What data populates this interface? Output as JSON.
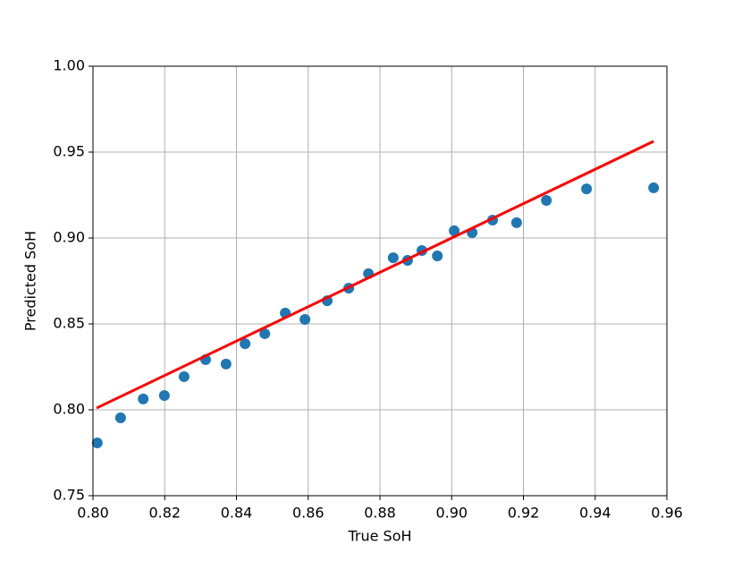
{
  "chart_data": {
    "type": "scatter",
    "xlabel": "True SoH",
    "ylabel": "Predicted SoH",
    "series": [
      {
        "type": "scatter",
        "color": "#1f77b4",
        "x": [
          0.8012,
          0.8077,
          0.814,
          0.8199,
          0.8254,
          0.8314,
          0.8371,
          0.8424,
          0.8479,
          0.8536,
          0.8591,
          0.8653,
          0.8713,
          0.8768,
          0.8837,
          0.8877,
          0.8917,
          0.896,
          0.9007,
          0.9057,
          0.9114,
          0.9181,
          0.9264,
          0.9376,
          0.9563
        ],
        "values": [
          0.7807,
          0.7953,
          0.8063,
          0.8083,
          0.8193,
          0.8292,
          0.8266,
          0.8385,
          0.8443,
          0.8563,
          0.8526,
          0.8635,
          0.8708,
          0.8792,
          0.8885,
          0.887,
          0.8927,
          0.8896,
          0.9042,
          0.9031,
          0.9104,
          0.9089,
          0.9219,
          0.9286,
          0.9292
        ]
      },
      {
        "type": "line",
        "color": "#ff0000",
        "x": [
          0.801,
          0.9563
        ],
        "values": [
          0.801,
          0.9563
        ]
      }
    ],
    "xlim": [
      0.8,
      0.96
    ],
    "ylim": [
      0.75,
      1.0
    ],
    "xticks": [
      {
        "value": 0.8,
        "label": "0.80"
      },
      {
        "value": 0.82,
        "label": "0.82"
      },
      {
        "value": 0.84,
        "label": "0.84"
      },
      {
        "value": 0.86,
        "label": "0.86"
      },
      {
        "value": 0.88,
        "label": "0.88"
      },
      {
        "value": 0.9,
        "label": "0.90"
      },
      {
        "value": 0.92,
        "label": "0.92"
      },
      {
        "value": 0.94,
        "label": "0.94"
      },
      {
        "value": 0.96,
        "label": "0.96"
      }
    ],
    "yticks": [
      {
        "value": 0.75,
        "label": "0.75"
      },
      {
        "value": 0.8,
        "label": "0.80"
      },
      {
        "value": 0.85,
        "label": "0.85"
      },
      {
        "value": 0.9,
        "label": "0.90"
      },
      {
        "value": 0.95,
        "label": "0.95"
      },
      {
        "value": 1.0,
        "label": "1.00"
      }
    ],
    "grid": true
  }
}
